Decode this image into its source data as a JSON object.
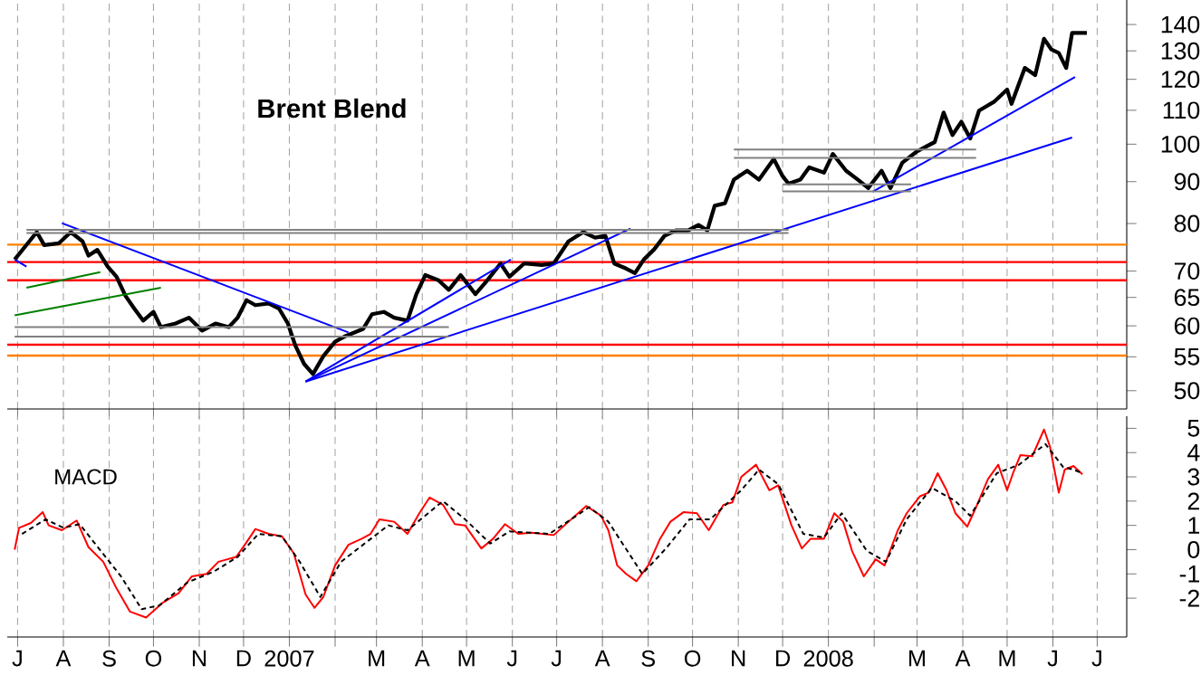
{
  "chart_data": [
    {
      "type": "line",
      "title": "Brent Blend",
      "log": true,
      "grid": "x",
      "tick_labels": "y",
      "xlim": [
        "2006-06-24",
        "2008-07-21"
      ],
      "xticks": [
        {
          "value": "2006-07-01",
          "label": null
        },
        {
          "value": "2006-08-01",
          "label": null
        },
        {
          "value": "2006-09-01",
          "label": null
        },
        {
          "value": "2006-10-01",
          "label": null
        },
        {
          "value": "2006-11-01",
          "label": null
        },
        {
          "value": "2006-12-01",
          "label": null
        },
        {
          "value": "2007-01-01",
          "label": null
        },
        {
          "value": "2007-02-01",
          "label": null
        },
        {
          "value": "2007-03-01",
          "label": null
        },
        {
          "value": "2007-04-01",
          "label": null
        },
        {
          "value": "2007-05-01",
          "label": null
        },
        {
          "value": "2007-06-01",
          "label": null
        },
        {
          "value": "2007-07-01",
          "label": null
        },
        {
          "value": "2007-08-01",
          "label": null
        },
        {
          "value": "2007-09-01",
          "label": null
        },
        {
          "value": "2007-10-01",
          "label": null
        },
        {
          "value": "2007-11-01",
          "label": null
        },
        {
          "value": "2007-12-01",
          "label": null
        },
        {
          "value": "2008-01-01",
          "label": null
        },
        {
          "value": "2008-02-01",
          "label": null
        },
        {
          "value": "2008-03-01",
          "label": null
        },
        {
          "value": "2008-04-01",
          "label": null
        },
        {
          "value": "2008-05-01",
          "label": null
        },
        {
          "value": "2008-06-01",
          "label": null
        },
        {
          "value": "2008-07-01",
          "label": null
        }
      ],
      "ylim": [
        47.5,
        150
      ],
      "yticks": [
        50,
        55,
        60,
        65,
        70,
        80,
        90,
        100,
        110,
        120,
        130,
        140
      ],
      "series": [
        {
          "color": "#000000",
          "x": [
            "2006-06-29",
            "2006-07-14",
            "2006-07-19",
            "2006-07-29",
            "2006-08-06",
            "2006-08-14",
            "2006-08-18",
            "2006-08-24",
            "2006-08-31",
            "2006-09-06",
            "2006-09-12",
            "2006-09-18",
            "2006-09-24",
            "2006-10-01",
            "2006-10-06",
            "2006-10-16",
            "2006-10-25",
            "2006-11-03",
            "2006-11-12",
            "2006-11-21",
            "2006-11-27",
            "2006-12-03",
            "2006-12-09",
            "2006-12-18",
            "2006-12-25",
            "2006-12-31",
            "2007-01-05",
            "2007-01-11",
            "2007-01-17",
            "2007-01-24",
            "2007-02-01",
            "2007-02-08",
            "2007-02-14",
            "2007-02-20",
            "2007-02-26",
            "2007-03-06",
            "2007-03-13",
            "2007-03-22",
            "2007-03-28",
            "2007-04-03",
            "2007-04-12",
            "2007-04-19",
            "2007-04-27",
            "2007-05-07",
            "2007-05-15",
            "2007-05-24",
            "2007-05-30",
            "2007-06-09",
            "2007-06-21",
            "2007-06-29",
            "2007-07-09",
            "2007-07-19",
            "2007-07-27",
            "2007-08-03",
            "2007-08-09",
            "2007-08-17",
            "2007-08-23",
            "2007-08-29",
            "2007-09-05",
            "2007-09-12",
            "2007-09-20",
            "2007-09-28",
            "2007-10-05",
            "2007-10-11",
            "2007-10-16",
            "2007-10-23",
            "2007-10-29",
            "2007-11-07",
            "2007-11-15",
            "2007-11-25",
            "2007-12-01",
            "2007-12-05",
            "2007-12-13",
            "2007-12-19",
            "2007-12-29",
            "2008-01-04",
            "2008-01-13",
            "2008-01-21",
            "2008-01-28",
            "2008-02-06",
            "2008-02-12",
            "2008-02-20",
            "2008-03-01",
            "2008-03-13",
            "2008-03-19",
            "2008-03-25",
            "2008-03-31",
            "2008-04-06",
            "2008-04-12",
            "2008-04-22",
            "2008-05-01",
            "2008-05-04",
            "2008-05-13",
            "2008-05-20",
            "2008-05-26",
            "2008-05-31",
            "2008-06-05",
            "2008-06-10",
            "2008-06-14",
            "2008-06-20",
            "2008-06-24"
          ],
          "values": [
            72.3,
            78.1,
            75.3,
            75.7,
            78.1,
            76.1,
            73.1,
            74.3,
            70.9,
            68.9,
            65.3,
            63.0,
            60.9,
            62.4,
            59.8,
            60.4,
            61.4,
            59.2,
            60.4,
            59.8,
            61.4,
            64.5,
            63.6,
            63.9,
            63.0,
            60.4,
            56.8,
            53.9,
            52.4,
            55.1,
            57.4,
            58.3,
            58.9,
            59.5,
            62.0,
            62.4,
            61.4,
            60.9,
            65.6,
            69.2,
            68.2,
            66.4,
            69.2,
            65.6,
            68.2,
            71.5,
            68.9,
            71.5,
            71.2,
            71.5,
            76.1,
            78.1,
            76.9,
            77.3,
            71.5,
            70.5,
            69.6,
            72.3,
            74.4,
            77.3,
            78.5,
            78.5,
            79.7,
            78.5,
            84.1,
            84.7,
            90.5,
            92.8,
            90.5,
            95.9,
            91.4,
            89.5,
            90.5,
            93.7,
            92.3,
            97.3,
            92.8,
            90.5,
            88.4,
            92.8,
            88.4,
            94.9,
            98.0,
            100.6,
            109.3,
            102.6,
            106.5,
            101.6,
            109.9,
            112.6,
            116.6,
            112.0,
            123.9,
            121.4,
            134.5,
            130.5,
            129.2,
            123.9,
            136.7,
            136.7,
            136.7
          ]
        },
        {
          "color": "#0000ff",
          "x": [
            "2006-07-31",
            "2007-02-10"
          ],
          "values": [
            80.1,
            58.9
          ]
        },
        {
          "color": "#0000ff",
          "x": [
            "2007-01-12",
            "2007-05-31"
          ],
          "values": [
            51.3,
            72.3
          ]
        },
        {
          "color": "#0000ff",
          "x": [
            "2007-01-12",
            "2007-08-20"
          ],
          "values": [
            51.3,
            78.9
          ]
        },
        {
          "color": "#0000ff",
          "x": [
            "2007-01-12",
            "2008-06-14"
          ],
          "values": [
            51.3,
            101.9
          ]
        },
        {
          "color": "#0000ff",
          "x": [
            "2008-01-31",
            "2008-06-16"
          ],
          "values": [
            87.5,
            120.8
          ]
        },
        {
          "color": "#0000ff",
          "x": [
            "2006-06-29",
            "2006-07-07"
          ],
          "values": [
            72.3,
            70.9
          ]
        },
        {
          "color": "#008000",
          "x": [
            "2006-07-07",
            "2006-08-26"
          ],
          "values": [
            66.8,
            69.8
          ]
        },
        {
          "color": "#008000",
          "x": [
            "2006-06-29",
            "2006-10-06"
          ],
          "values": [
            61.8,
            66.8
          ]
        },
        {
          "color": "#808080",
          "x": [
            "2006-07-07",
            "2007-12-05"
          ],
          "values": [
            78.6,
            78.6
          ]
        },
        {
          "color": "#808080",
          "x": [
            "2006-07-07",
            "2007-12-05"
          ],
          "values": [
            77.9,
            77.9
          ]
        },
        {
          "color": "#808080",
          "x": [
            "2006-06-29",
            "2007-04-19"
          ],
          "values": [
            59.8,
            59.8
          ]
        },
        {
          "color": "#808080",
          "x": [
            "2006-06-29",
            "2007-04-19"
          ],
          "values": [
            58.2,
            58.2
          ]
        },
        {
          "color": "#808080",
          "x": [
            "2007-10-29",
            "2008-04-10"
          ],
          "values": [
            98.5,
            98.5
          ]
        },
        {
          "color": "#808080",
          "x": [
            "2007-10-29",
            "2008-04-10"
          ],
          "values": [
            96.2,
            96.2
          ]
        },
        {
          "color": "#808080",
          "x": [
            "2007-12-01",
            "2008-02-26"
          ],
          "values": [
            89.3,
            89.3
          ]
        },
        {
          "color": "#808080",
          "x": [
            "2007-12-01",
            "2008-02-26"
          ],
          "values": [
            87.6,
            87.6
          ]
        }
      ],
      "ref_lines": [
        {
          "axis": "y",
          "value": 75.4,
          "color": "#ff8000"
        },
        {
          "axis": "y",
          "value": 71.8,
          "color": "#ff0000"
        },
        {
          "axis": "y",
          "value": 68.2,
          "color": "#ff0000"
        },
        {
          "axis": "y",
          "value": 56.9,
          "color": "#ff0000"
        },
        {
          "axis": "y",
          "value": 55.2,
          "color": "#ff8000"
        }
      ]
    },
    {
      "type": "line",
      "title": "MACD",
      "grid": "x",
      "xlim": [
        "2006-06-24",
        "2008-07-21"
      ],
      "xticks": [
        {
          "value": "2006-07-01",
          "label": "J"
        },
        {
          "value": "2006-08-01",
          "label": "A"
        },
        {
          "value": "2006-09-01",
          "label": "S"
        },
        {
          "value": "2006-10-01",
          "label": "O"
        },
        {
          "value": "2006-11-01",
          "label": "N"
        },
        {
          "value": "2006-12-01",
          "label": "D"
        },
        {
          "value": "2007-01-01",
          "label": "2007"
        },
        {
          "value": "2007-02-01",
          "label": null
        },
        {
          "value": "2007-03-01",
          "label": "M"
        },
        {
          "value": "2007-04-01",
          "label": "A"
        },
        {
          "value": "2007-05-01",
          "label": "M"
        },
        {
          "value": "2007-06-01",
          "label": "J"
        },
        {
          "value": "2007-07-01",
          "label": "J"
        },
        {
          "value": "2007-08-01",
          "label": "A"
        },
        {
          "value": "2007-09-01",
          "label": "S"
        },
        {
          "value": "2007-10-01",
          "label": "O"
        },
        {
          "value": "2007-11-01",
          "label": "N"
        },
        {
          "value": "2007-12-01",
          "label": "D"
        },
        {
          "value": "2008-01-01",
          "label": "2008"
        },
        {
          "value": "2008-02-01",
          "label": null
        },
        {
          "value": "2008-03-01",
          "label": "M"
        },
        {
          "value": "2008-04-01",
          "label": "A"
        },
        {
          "value": "2008-05-01",
          "label": "M"
        },
        {
          "value": "2008-06-01",
          "label": "J"
        },
        {
          "value": "2008-07-01",
          "label": "J"
        }
      ],
      "ylim": [
        -3.6,
        5.5
      ],
      "yticks": [
        -2,
        -1,
        0,
        1,
        2,
        3,
        4,
        5
      ],
      "series": [
        {
          "color": "#ff0000",
          "line_style": "solid",
          "x": [
            "2006-06-29",
            "2006-07-02",
            "2006-07-10",
            "2006-07-18",
            "2006-07-22",
            "2006-07-31",
            "2006-08-10",
            "2006-08-18",
            "2006-08-28",
            "2006-09-06",
            "2006-09-15",
            "2006-09-26",
            "2006-10-07",
            "2006-10-18",
            "2006-10-27",
            "2006-11-06",
            "2006-11-14",
            "2006-11-26",
            "2006-12-03",
            "2006-12-09",
            "2006-12-18",
            "2006-12-27",
            "2007-01-04",
            "2007-01-12",
            "2007-01-18",
            "2007-01-24",
            "2007-02-01",
            "2007-02-10",
            "2007-02-19",
            "2007-02-25",
            "2007-03-03",
            "2007-03-13",
            "2007-03-22",
            "2007-03-30",
            "2007-04-06",
            "2007-04-15",
            "2007-04-23",
            "2007-04-30",
            "2007-05-11",
            "2007-05-19",
            "2007-05-27",
            "2007-06-05",
            "2007-06-14",
            "2007-06-29",
            "2007-07-09",
            "2007-07-21",
            "2007-07-31",
            "2007-08-05",
            "2007-08-11",
            "2007-08-17",
            "2007-08-24",
            "2007-09-01",
            "2007-09-09",
            "2007-09-16",
            "2007-09-25",
            "2007-10-04",
            "2007-10-12",
            "2007-10-22",
            "2007-10-28",
            "2007-11-03",
            "2007-11-13",
            "2007-11-22",
            "2007-11-28",
            "2007-12-07",
            "2007-12-14",
            "2007-12-20",
            "2007-12-29",
            "2008-01-05",
            "2008-01-11",
            "2008-01-17",
            "2008-01-25",
            "2008-02-02",
            "2008-02-08",
            "2008-02-17",
            "2008-02-23",
            "2008-03-03",
            "2008-03-09",
            "2008-03-15",
            "2008-03-21",
            "2008-03-27",
            "2008-04-04",
            "2008-04-10",
            "2008-04-18",
            "2008-04-25",
            "2008-05-01",
            "2008-05-05",
            "2008-05-10",
            "2008-05-18",
            "2008-05-26",
            "2008-05-30",
            "2008-06-05",
            "2008-06-09",
            "2008-06-15",
            "2008-06-21"
          ],
          "values": [
            0.0,
            0.9,
            1.1,
            1.55,
            1.0,
            0.8,
            1.2,
            0.1,
            -0.5,
            -1.6,
            -2.55,
            -2.8,
            -2.2,
            -1.8,
            -1.1,
            -1.0,
            -0.5,
            -0.3,
            0.3,
            0.85,
            0.65,
            0.55,
            -0.15,
            -1.85,
            -2.4,
            -1.95,
            -0.65,
            0.2,
            0.45,
            0.65,
            1.25,
            1.15,
            0.65,
            1.5,
            2.15,
            1.85,
            1.05,
            1.0,
            0.05,
            0.45,
            1.05,
            0.65,
            0.7,
            0.6,
            1.15,
            1.8,
            1.4,
            0.8,
            -0.65,
            -1.0,
            -1.3,
            -0.65,
            0.45,
            1.15,
            1.55,
            1.5,
            0.8,
            1.85,
            1.95,
            3.0,
            3.5,
            2.45,
            2.65,
            1.0,
            0.05,
            0.45,
            0.45,
            1.5,
            1.15,
            -0.05,
            -1.1,
            -0.4,
            -0.65,
            0.8,
            1.5,
            2.2,
            2.35,
            3.15,
            2.45,
            1.5,
            0.95,
            1.75,
            2.9,
            3.5,
            2.45,
            3.15,
            3.9,
            3.85,
            4.95,
            4.25,
            2.35,
            3.3,
            3.45,
            3.1
          ]
        },
        {
          "color": "#000000",
          "line_style": "dashed",
          "x": [
            "2006-07-04",
            "2006-07-20",
            "2006-08-01",
            "2006-08-12",
            "2006-08-25",
            "2006-09-09",
            "2006-09-23",
            "2006-10-05",
            "2006-10-24",
            "2006-11-11",
            "2006-11-27",
            "2006-12-11",
            "2006-12-27",
            "2007-01-08",
            "2007-01-22",
            "2007-02-05",
            "2007-02-22",
            "2007-03-09",
            "2007-03-22",
            "2007-04-15",
            "2007-04-30",
            "2007-05-17",
            "2007-05-30",
            "2007-06-26",
            "2007-07-23",
            "2007-08-05",
            "2007-08-28",
            "2007-09-13",
            "2007-09-29",
            "2007-10-13",
            "2007-11-03",
            "2007-11-15",
            "2007-11-28",
            "2007-12-15",
            "2007-12-29",
            "2008-01-10",
            "2008-01-27",
            "2008-02-09",
            "2008-02-23",
            "2008-03-11",
            "2008-03-27",
            "2008-04-06",
            "2008-04-24",
            "2008-05-09",
            "2008-05-27",
            "2008-06-08",
            "2008-06-15",
            "2008-06-21"
          ],
          "values": [
            0.65,
            1.25,
            0.9,
            1.05,
            0.05,
            -1.1,
            -2.45,
            -2.3,
            -1.35,
            -0.9,
            -0.3,
            0.65,
            0.55,
            -0.5,
            -1.95,
            -0.5,
            0.3,
            1.0,
            0.8,
            2.0,
            1.25,
            0.25,
            0.75,
            0.65,
            1.75,
            1.15,
            -1.0,
            0.05,
            1.25,
            1.25,
            2.45,
            3.3,
            2.7,
            0.65,
            0.5,
            1.5,
            -0.05,
            -0.5,
            1.25,
            2.55,
            2.0,
            1.4,
            3.15,
            3.5,
            4.35,
            3.4,
            3.3,
            3.15
          ]
        }
      ]
    }
  ]
}
